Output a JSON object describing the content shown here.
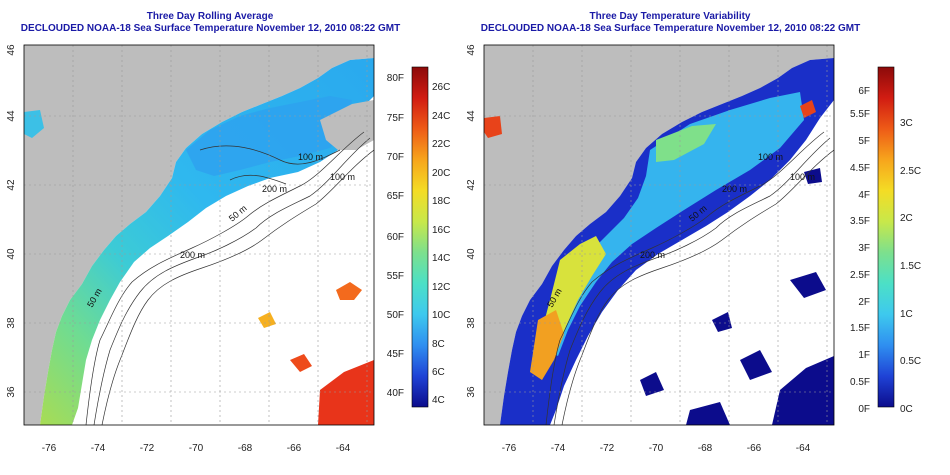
{
  "left_panel": {
    "title": "Three Day Rolling Average",
    "subtitle": "DECLOUDED NOAA-18 Sea Surface Temperature November 12, 2010 08:22 GMT",
    "x_ticks": [
      "-76",
      "-74",
      "-72",
      "-70",
      "-68",
      "-66",
      "-64"
    ],
    "y_ticks": [
      "36",
      "38",
      "40",
      "42",
      "44",
      "46"
    ],
    "depth_labels": [
      "100 m",
      "200 m",
      "200 m",
      "100 m",
      "50 m",
      "50 m"
    ],
    "colorbar_left_labels": [
      "40F",
      "45F",
      "50F",
      "55F",
      "60F",
      "65F",
      "70F",
      "75F",
      "80F"
    ],
    "colorbar_right_labels": [
      "4C",
      "6C",
      "8C",
      "10C",
      "12C",
      "14C",
      "16C",
      "18C",
      "20C",
      "22C",
      "24C",
      "26C"
    ],
    "colorbar_colors": [
      "#0c0c8c",
      "#1f43d6",
      "#2f8ff0",
      "#3ec9ee",
      "#4ce0c6",
      "#7de08d",
      "#c8e84a",
      "#f4dc25",
      "#f7a51c",
      "#ee5b17",
      "#d11c12",
      "#8c0a0a"
    ]
  },
  "right_panel": {
    "title": "Three Day Temperature Variability",
    "subtitle": "DECLOUDED NOAA-18 Sea Surface Temperature November 12, 2010 08:22 GMT",
    "x_ticks": [
      "-76",
      "-74",
      "-72",
      "-70",
      "-68",
      "-66",
      "-64"
    ],
    "y_ticks": [
      "36",
      "38",
      "40",
      "42",
      "44",
      "46"
    ],
    "depth_labels": [
      "100 m",
      "200 m",
      "200 m",
      "100 m",
      "50 m",
      "50 m"
    ],
    "colorbar_left_labels": [
      "0F",
      "0.5F",
      "1F",
      "1.5F",
      "2F",
      "2.5F",
      "3F",
      "3.5F",
      "4F",
      "4.5F",
      "5F",
      "5.5F",
      "6F"
    ],
    "colorbar_right_labels": [
      "0C",
      "0.5C",
      "1C",
      "1.5C",
      "2C",
      "2.5C",
      "3C"
    ],
    "colorbar_colors": [
      "#0c0c8c",
      "#1f43d6",
      "#2f8ff0",
      "#3ec9ee",
      "#4ce0c6",
      "#7de08d",
      "#c8e84a",
      "#f4dc25",
      "#f7a51c",
      "#ee5b17",
      "#d11c12",
      "#8c0a0a"
    ]
  }
}
